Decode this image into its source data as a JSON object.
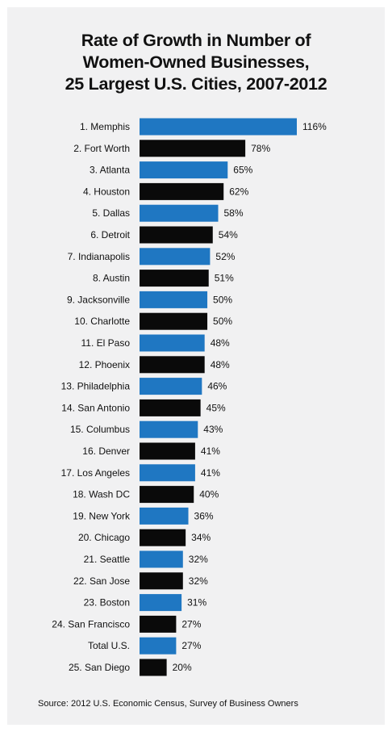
{
  "chart_data": {
    "type": "bar",
    "orientation": "horizontal",
    "title_lines": [
      "Rate of Growth in Number of",
      "Women-Owned Businesses,",
      "25 Largest U.S. Cities, 2007-2012"
    ],
    "categories": [
      "1. Memphis",
      "2. Fort Worth",
      "3. Atlanta",
      "4. Houston",
      "5. Dallas",
      "6. Detroit",
      "7. Indianapolis",
      "8. Austin",
      "9. Jacksonville",
      "10. Charlotte",
      "11. El Paso",
      "12. Phoenix",
      "13. Philadelphia",
      "14. San Antonio",
      "15. Columbus",
      "16. Denver",
      "17. Los Angeles",
      "18. Wash DC",
      "19. New York",
      "20. Chicago",
      "21. Seattle",
      "22. San Jose",
      "23. Boston",
      "24. San Francisco",
      "Total U.S.",
      "25. San Diego"
    ],
    "values": [
      116,
      78,
      65,
      62,
      58,
      54,
      52,
      51,
      50,
      50,
      48,
      48,
      46,
      45,
      43,
      41,
      41,
      40,
      36,
      34,
      32,
      32,
      31,
      27,
      27,
      20
    ],
    "value_labels": [
      "116%",
      "78%",
      "65%",
      "62%",
      "58%",
      "54%",
      "52%",
      "51%",
      "50%",
      "50%",
      "48%",
      "48%",
      "46%",
      "45%",
      "43%",
      "41%",
      "41%",
      "40%",
      "36%",
      "34%",
      "32%",
      "32%",
      "31%",
      "27%",
      "27%",
      "20%"
    ],
    "unit": "%",
    "xlim": [
      0,
      116
    ],
    "grid": false,
    "legend": "none",
    "colors": {
      "blue": "#1f77c2",
      "black": "#0a0a0a"
    },
    "bar_color_pattern": [
      "blue",
      "black"
    ]
  },
  "source": "Source: 2012 U.S. Economic Census, Survey of Business Owners",
  "colors": {
    "panel_background": "#f1f1f2",
    "page_background": "#ffffff",
    "text": "#111111"
  }
}
